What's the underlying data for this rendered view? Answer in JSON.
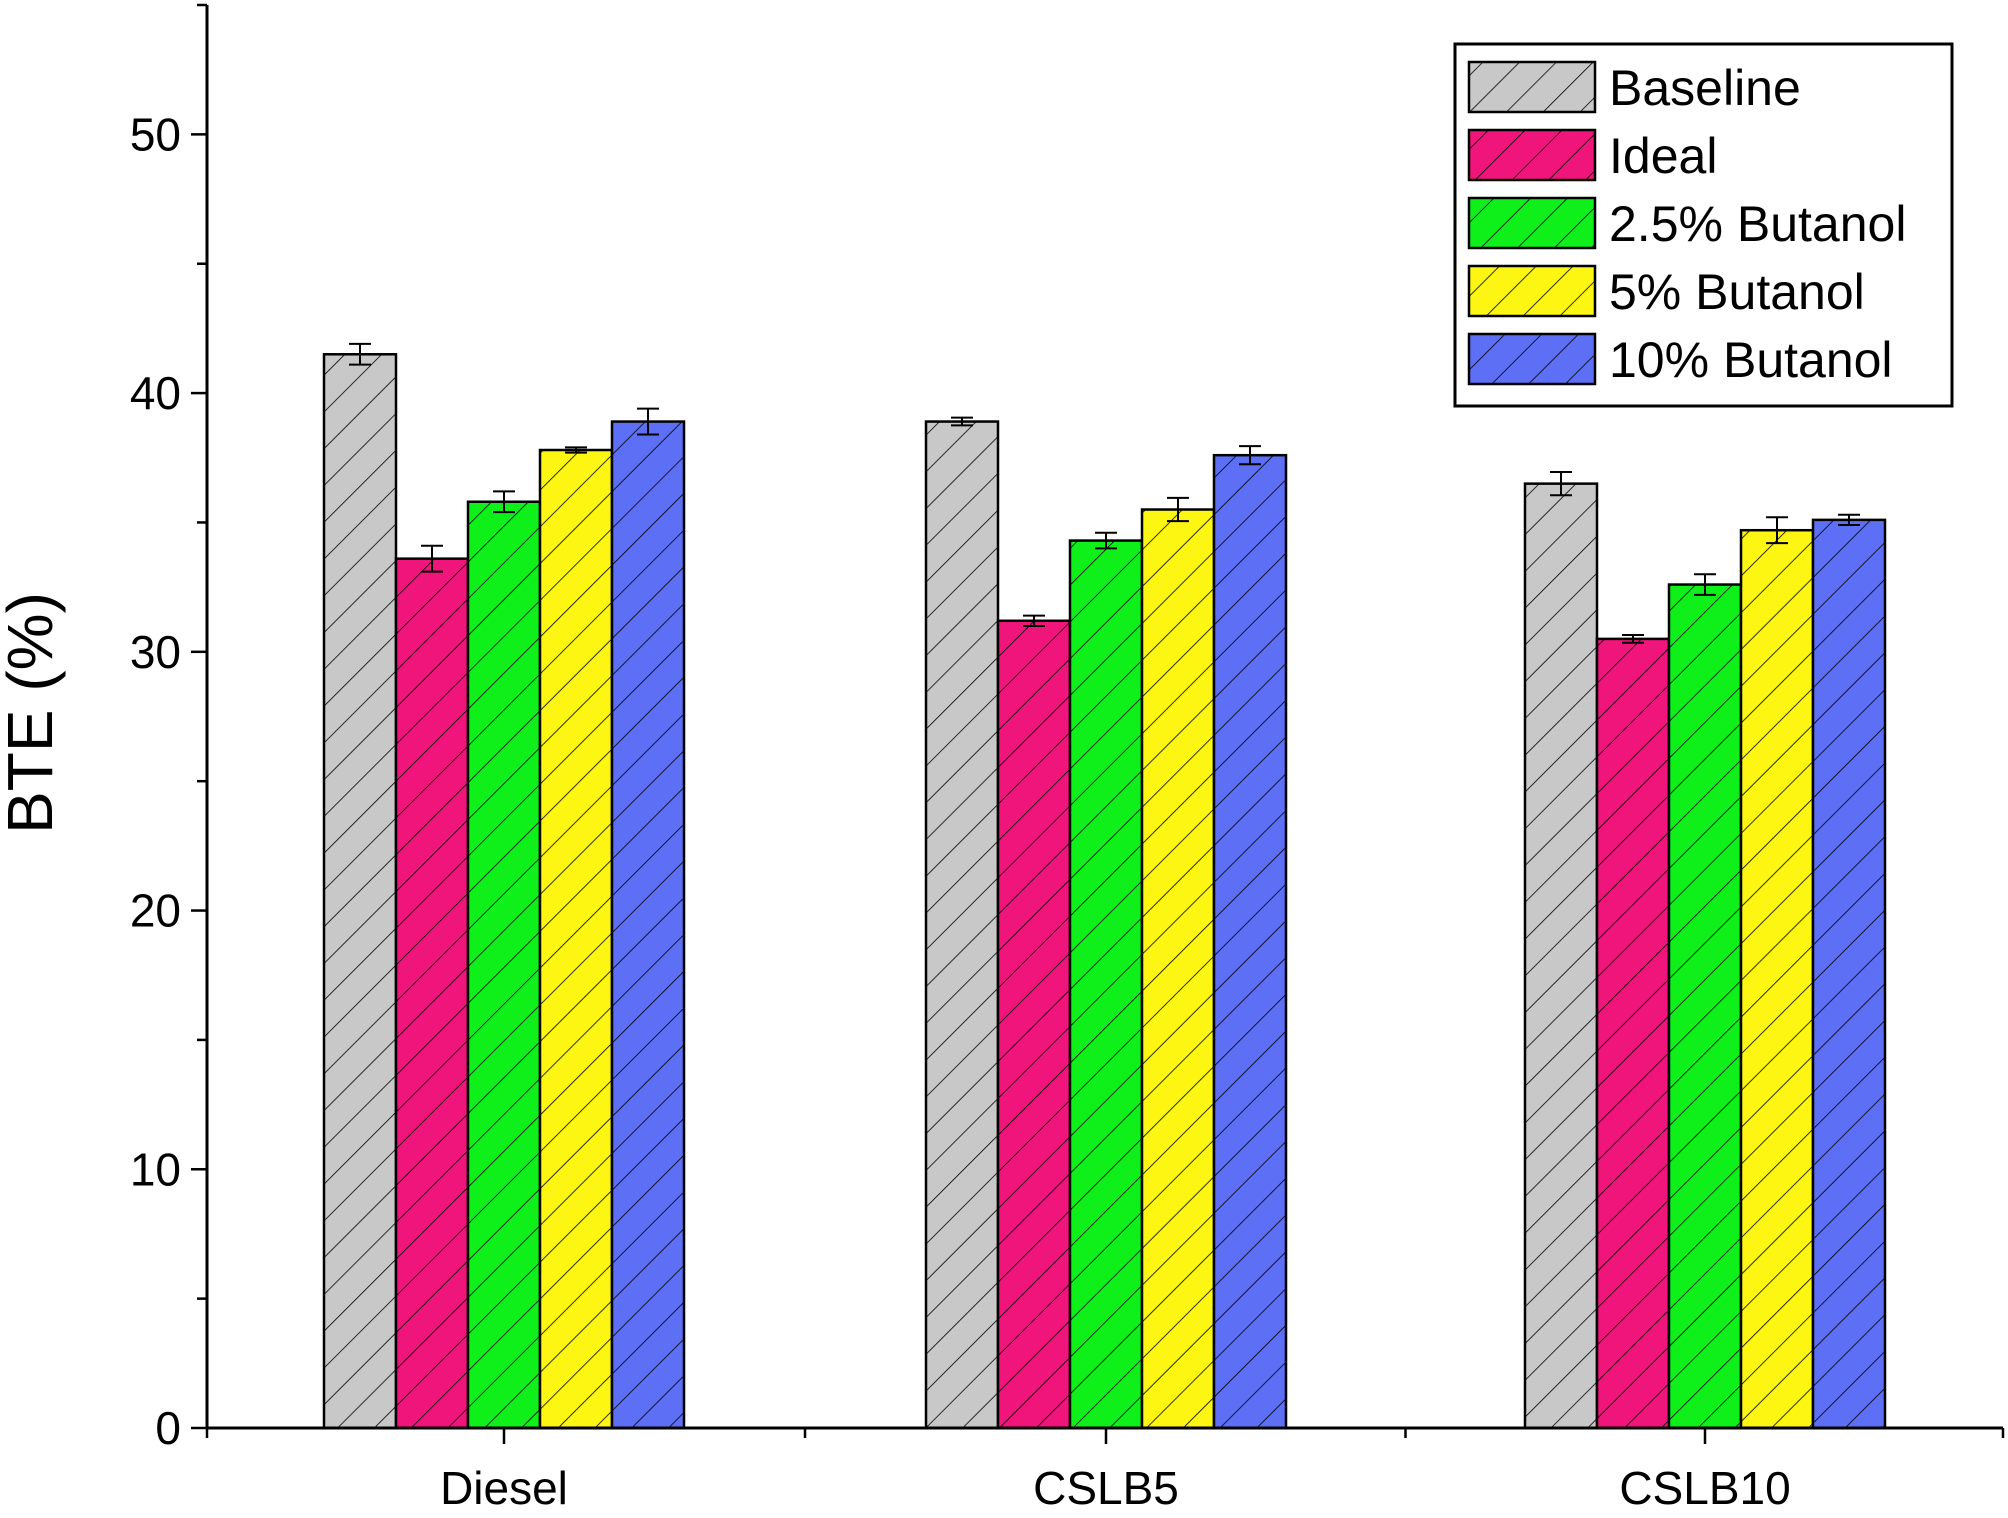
{
  "chart_data": {
    "type": "bar",
    "title": "",
    "xlabel": "",
    "ylabel": "BTE (%)",
    "ylim": [
      0,
      55
    ],
    "yticks": [
      0,
      10,
      20,
      30,
      40,
      50
    ],
    "grid": false,
    "legend_position": "top-right",
    "hatch": "diagonal",
    "categories": [
      "Diesel",
      "CSLB5",
      "CSLB10"
    ],
    "series": [
      {
        "name": "Baseline",
        "color": "#c8c8c8",
        "values": [
          41.5,
          38.9,
          36.5
        ],
        "errors": [
          0.4,
          0.15,
          0.45
        ]
      },
      {
        "name": "Ideal",
        "color": "#f0157a",
        "values": [
          33.6,
          31.2,
          30.5
        ],
        "errors": [
          0.5,
          0.2,
          0.15
        ]
      },
      {
        "name": "2.5% Butanol",
        "color": "#0ff01a",
        "values": [
          35.8,
          34.3,
          32.6
        ],
        "errors": [
          0.4,
          0.3,
          0.4
        ]
      },
      {
        "name": "5% Butanol",
        "color": "#fdf512",
        "values": [
          37.8,
          35.5,
          34.7
        ],
        "errors": [
          0.1,
          0.45,
          0.5
        ]
      },
      {
        "name": "10% Butanol",
        "color": "#5d6ff5",
        "values": [
          38.9,
          37.6,
          35.1
        ],
        "errors": [
          0.5,
          0.35,
          0.2
        ]
      }
    ]
  }
}
